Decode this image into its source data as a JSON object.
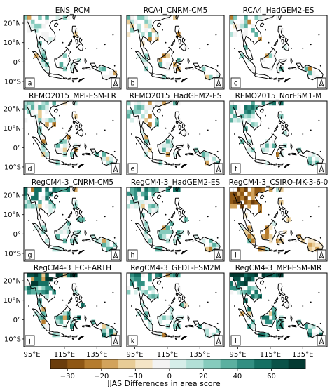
{
  "figure": {
    "panels": [
      {
        "title": "ENS_RCM",
        "label": "a"
      },
      {
        "title": "RCA4_CNRM-CM5",
        "label": "b"
      },
      {
        "title": "RCA4_HadGEM2-ES",
        "label": "c"
      },
      {
        "title": "REMO2015_MPI-ESM-LR",
        "label": "d"
      },
      {
        "title": "REMO2015_HadGEM2-ES",
        "label": "e"
      },
      {
        "title": "REMO2015_NorESM1-M",
        "label": "f"
      },
      {
        "title": "RegCM4-3_CNRM-CM5",
        "label": "g"
      },
      {
        "title": "RegCM4-3_HadGEM2-ES",
        "label": "h"
      },
      {
        "title": "RegCM4-3_CSIRO-MK-3-6-0",
        "label": "i"
      },
      {
        "title": "RegCM4-3_EC-EARTH",
        "label": "j"
      },
      {
        "title": "RegCM4-3_GFDL-ESM2M",
        "label": "k"
      },
      {
        "title": "RegCM4-3_MPI-ESM-MR",
        "label": "l"
      }
    ],
    "lat_ticks": [
      "20°N",
      "10°N",
      "0°",
      "10°S"
    ],
    "lon_ticks": [
      "95°E",
      "115°E",
      "135°E"
    ],
    "north_arrow": "N",
    "colorbar": {
      "label": "JJAS Differences in area score",
      "ticks": [
        "−30",
        "−20",
        "−10",
        "0",
        "20",
        "40",
        "60"
      ],
      "colors": [
        "#6b3d0c",
        "#8f5714",
        "#b57c2e",
        "#d2a35c",
        "#e8cc96",
        "#f5e5c6",
        "#f3f3f3",
        "#d6eee9",
        "#b2e0d7",
        "#86cbbd",
        "#5bb0a0",
        "#328f82",
        "#157063",
        "#0a5248",
        "#033a32"
      ]
    }
  }
}
